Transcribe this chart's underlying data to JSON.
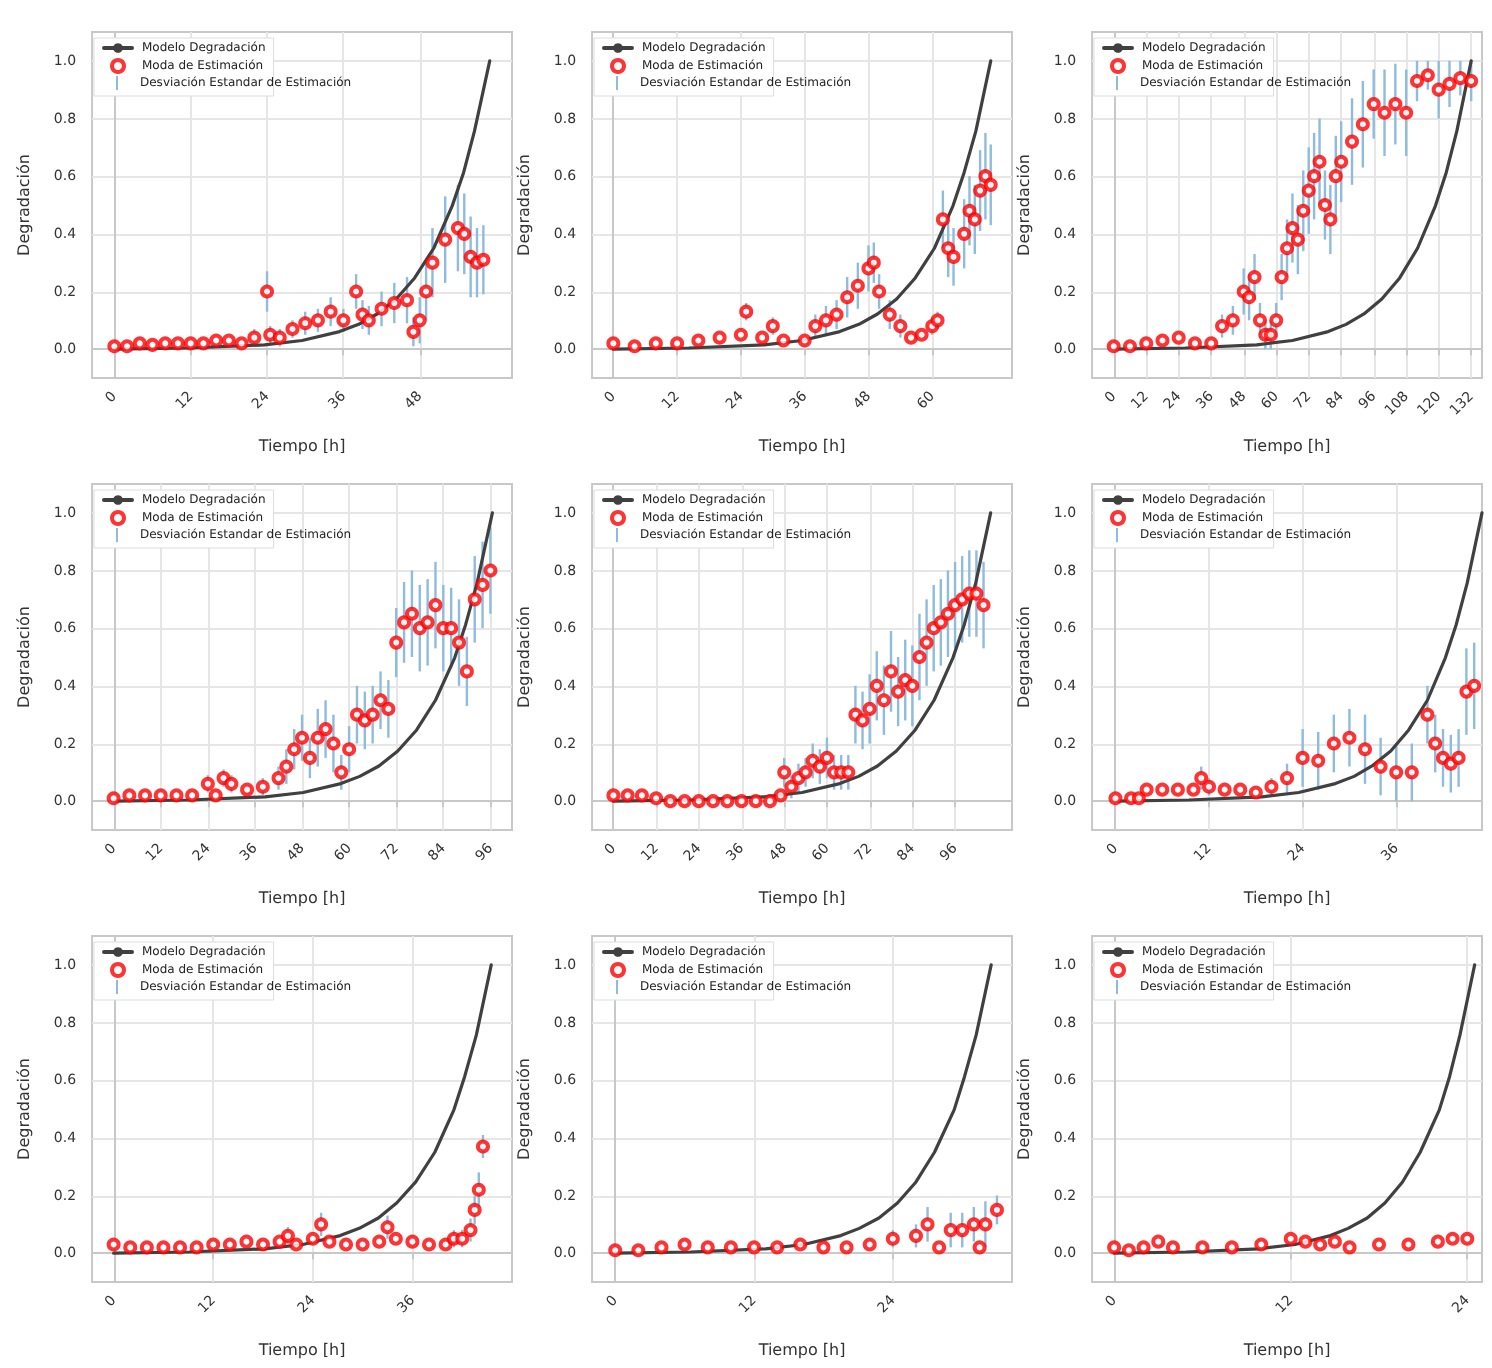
{
  "chart_data": [
    {
      "type": "line",
      "xlabel": "Tiempo [h]",
      "ylabel": "Degradación",
      "xlim": [
        -3.5,
        62.5
      ],
      "xticks": [
        0,
        12,
        24,
        36,
        48
      ],
      "ylim": [
        -0.1,
        1.1
      ],
      "yticks": [
        {
          "value": 0,
          "label": "0.0"
        },
        {
          "value": 0.2,
          "label": "0.2"
        },
        {
          "value": 0.4,
          "label": "0.4"
        },
        {
          "value": 0.6,
          "label": "0.6"
        },
        {
          "value": 0.8,
          "label": "0.8"
        },
        {
          "value": 1,
          "label": "1.0"
        }
      ],
      "grid": true,
      "legend": "top left",
      "annotations": [
        "Desviación Estandar de Estimación"
      ],
      "series": [
        {
          "name": "Modelo Degradación",
          "type": "line",
          "marker": "none",
          "color": "#404040",
          "x": [
            0,
            11.8,
            23.6,
            29.5,
            35.4,
            38.4,
            41.3,
            44.3,
            47.2,
            50.2,
            53.1,
            54.9,
            56.6,
            59
          ],
          "values": [
            0,
            0.004,
            0.015,
            0.03,
            0.061,
            0.086,
            0.122,
            0.174,
            0.247,
            0.35,
            0.497,
            0.613,
            0.756,
            1
          ]
        },
        {
          "name": "Moda de Estimación",
          "type": "scatter",
          "marker": "circle",
          "color": "#ff0000",
          "x": [
            0,
            2,
            4,
            6,
            8,
            10,
            12,
            14,
            16,
            18,
            20,
            22,
            24,
            24.5,
            26,
            28,
            30,
            32,
            34,
            36,
            38,
            39,
            40,
            42,
            44,
            46,
            47,
            48,
            49,
            50,
            52,
            54,
            55,
            56,
            57,
            58
          ],
          "values": [
            0.01,
            0.01,
            0.02,
            0.015,
            0.02,
            0.02,
            0.02,
            0.02,
            0.03,
            0.03,
            0.02,
            0.04,
            0.2,
            0.05,
            0.04,
            0.07,
            0.09,
            0.1,
            0.13,
            0.1,
            0.2,
            0.12,
            0.1,
            0.14,
            0.16,
            0.17,
            0.06,
            0.1,
            0.2,
            0.3,
            0.38,
            0.42,
            0.4,
            0.32,
            0.3,
            0.31
          ],
          "errors": [
            null,
            null,
            null,
            null,
            null,
            null,
            null,
            null,
            null,
            null,
            null,
            0.03,
            0.07,
            0.03,
            0.03,
            0.03,
            0.04,
            0.04,
            0.05,
            0.04,
            0.06,
            0.05,
            0.05,
            0.06,
            0.07,
            0.08,
            0.05,
            0.08,
            0.1,
            0.12,
            0.15,
            0.15,
            0.14,
            0.14,
            0.12,
            0.12
          ]
        }
      ]
    },
    {
      "type": "line",
      "xlabel": "Tiempo [h]",
      "ylabel": "Degradación",
      "xlim": [
        -4,
        75
      ],
      "xticks": [
        0,
        12,
        24,
        36,
        48,
        60
      ],
      "ylim": [
        -0.1,
        1.1
      ],
      "yticks": [
        {
          "value": 0,
          "label": "0.0"
        },
        {
          "value": 0.2,
          "label": "0.2"
        },
        {
          "value": 0.4,
          "label": "0.4"
        },
        {
          "value": 0.6,
          "label": "0.6"
        },
        {
          "value": 0.8,
          "label": "0.8"
        },
        {
          "value": 1,
          "label": "1.0"
        }
      ],
      "grid": true,
      "legend": "top left",
      "annotations": [
        "Desviación Estandar de Estimación"
      ],
      "series": [
        {
          "name": "Modelo Degradación",
          "type": "line",
          "marker": "none",
          "color": "#404040",
          "x": [
            0,
            14.2,
            28.4,
            35.5,
            42.6,
            46.2,
            49.7,
            53.3,
            56.8,
            60.4,
            63.9,
            66,
            68.2,
            71
          ],
          "values": [
            0,
            0.004,
            0.015,
            0.03,
            0.061,
            0.086,
            0.122,
            0.174,
            0.247,
            0.35,
            0.497,
            0.613,
            0.756,
            1
          ]
        },
        {
          "name": "Moda de Estimación",
          "type": "scatter",
          "marker": "circle",
          "color": "#ff0000",
          "x": [
            0,
            4,
            8,
            12,
            16,
            20,
            24,
            25,
            28,
            30,
            32,
            36,
            38,
            40,
            42,
            44,
            46,
            48,
            49,
            50,
            52,
            54,
            56,
            58,
            60,
            61,
            62,
            63,
            64,
            66,
            67,
            68,
            69,
            70,
            71
          ],
          "values": [
            0.02,
            0.01,
            0.02,
            0.02,
            0.03,
            0.04,
            0.05,
            0.13,
            0.04,
            0.08,
            0.03,
            0.03,
            0.08,
            0.1,
            0.12,
            0.18,
            0.22,
            0.28,
            0.3,
            0.2,
            0.12,
            0.08,
            0.04,
            0.05,
            0.08,
            0.1,
            0.45,
            0.35,
            0.32,
            0.4,
            0.48,
            0.45,
            0.55,
            0.6,
            0.57
          ],
          "errors": [
            null,
            null,
            null,
            null,
            null,
            null,
            null,
            0.03,
            null,
            0.03,
            null,
            null,
            0.04,
            0.05,
            0.05,
            0.07,
            0.08,
            0.08,
            0.07,
            0.06,
            0.05,
            0.04,
            null,
            null,
            0.03,
            0.03,
            0.1,
            0.1,
            0.1,
            0.12,
            0.12,
            0.12,
            0.14,
            0.15,
            0.14
          ]
        }
      ]
    },
    {
      "type": "line",
      "xlabel": "Tiempo [h]",
      "ylabel": "Degradación",
      "xlim": [
        -8,
        136
      ],
      "xticks": [
        0,
        12,
        24,
        36,
        48,
        60,
        72,
        84,
        96,
        108,
        120,
        132
      ],
      "ylim": [
        -0.1,
        1.1
      ],
      "yticks": [
        {
          "value": 0,
          "label": "0.0"
        },
        {
          "value": 0.2,
          "label": "0.2"
        },
        {
          "value": 0.4,
          "label": "0.4"
        },
        {
          "value": 0.6,
          "label": "0.6"
        },
        {
          "value": 0.8,
          "label": "0.8"
        },
        {
          "value": 1,
          "label": "1.0"
        }
      ],
      "grid": true,
      "legend": "top left",
      "annotations": [
        "Desviación Estandar de Estimación"
      ],
      "series": [
        {
          "name": "Modelo Degradación",
          "type": "line",
          "marker": "none",
          "color": "#404040",
          "x": [
            0,
            26.4,
            52.8,
            66,
            79.2,
            85.8,
            92.4,
            99,
            105.6,
            112.2,
            118.8,
            122.8,
            126.7,
            132
          ],
          "values": [
            0,
            0.004,
            0.015,
            0.03,
            0.061,
            0.086,
            0.122,
            0.174,
            0.247,
            0.35,
            0.497,
            0.613,
            0.756,
            1
          ]
        },
        {
          "name": "Moda de Estimación",
          "type": "scatter",
          "marker": "circle",
          "color": "#ff0000",
          "x": [
            0,
            6,
            12,
            18,
            24,
            30,
            36,
            40,
            44,
            48,
            50,
            52,
            54,
            56,
            58,
            60,
            62,
            64,
            66,
            68,
            70,
            72,
            74,
            76,
            78,
            80,
            82,
            84,
            88,
            92,
            96,
            100,
            104,
            108,
            112,
            116,
            120,
            124,
            128,
            132
          ],
          "values": [
            0.01,
            0.01,
            0.02,
            0.03,
            0.04,
            0.02,
            0.02,
            0.08,
            0.1,
            0.2,
            0.18,
            0.25,
            0.1,
            0.05,
            0.05,
            0.1,
            0.25,
            0.35,
            0.42,
            0.38,
            0.48,
            0.55,
            0.6,
            0.65,
            0.5,
            0.45,
            0.6,
            0.65,
            0.72,
            0.78,
            0.85,
            0.82,
            0.85,
            0.82,
            0.93,
            0.95,
            0.9,
            0.92,
            0.94,
            0.93
          ],
          "errors": [
            null,
            null,
            null,
            null,
            null,
            null,
            null,
            0.04,
            0.05,
            0.08,
            0.08,
            0.08,
            0.06,
            0.05,
            0.05,
            0.06,
            0.08,
            0.1,
            0.12,
            0.12,
            0.14,
            0.15,
            0.15,
            0.15,
            0.12,
            0.12,
            0.14,
            0.14,
            0.15,
            0.15,
            0.12,
            0.15,
            0.14,
            0.15,
            0.07,
            0.05,
            0.1,
            0.08,
            0.06,
            0.07
          ]
        }
      ]
    },
    {
      "type": "line",
      "xlabel": "Tiempo [h]",
      "ylabel": "Degradación",
      "xlim": [
        -5.5,
        101.5
      ],
      "xticks": [
        0,
        12,
        24,
        36,
        48,
        60,
        72,
        84,
        96
      ],
      "ylim": [
        -0.1,
        1.1
      ],
      "yticks": [
        {
          "value": 0,
          "label": "0.0"
        },
        {
          "value": 0.2,
          "label": "0.2"
        },
        {
          "value": 0.4,
          "label": "0.4"
        },
        {
          "value": 0.6,
          "label": "0.6"
        },
        {
          "value": 0.8,
          "label": "0.8"
        },
        {
          "value": 1,
          "label": "1.0"
        }
      ],
      "grid": true,
      "legend": "top left",
      "annotations": [
        "Desviación Estandar de Estimación"
      ],
      "series": [
        {
          "name": "Modelo Degradación",
          "type": "line",
          "marker": "none",
          "color": "#404040",
          "x": [
            0,
            19.3,
            38.6,
            48.3,
            57.9,
            62.7,
            67.6,
            72.4,
            77.2,
            82,
            86.9,
            89.7,
            92.6,
            96.5
          ],
          "values": [
            0,
            0.004,
            0.015,
            0.03,
            0.061,
            0.086,
            0.122,
            0.174,
            0.247,
            0.35,
            0.497,
            0.613,
            0.756,
            1
          ]
        },
        {
          "name": "Moda de Estimación",
          "type": "scatter",
          "marker": "circle",
          "color": "#ff0000",
          "x": [
            0,
            4,
            8,
            12,
            16,
            20,
            24,
            26,
            28,
            30,
            34,
            38,
            42,
            44,
            46,
            48,
            50,
            52,
            54,
            56,
            58,
            60,
            62,
            64,
            66,
            68,
            70,
            72,
            74,
            76,
            78,
            80,
            82,
            84,
            86,
            88,
            90,
            92,
            94,
            96
          ],
          "values": [
            0.01,
            0.02,
            0.02,
            0.02,
            0.02,
            0.02,
            0.06,
            0.02,
            0.08,
            0.06,
            0.04,
            0.05,
            0.08,
            0.12,
            0.18,
            0.22,
            0.15,
            0.22,
            0.25,
            0.2,
            0.1,
            0.18,
            0.3,
            0.28,
            0.3,
            0.35,
            0.32,
            0.55,
            0.62,
            0.65,
            0.6,
            0.62,
            0.68,
            0.6,
            0.6,
            0.55,
            0.45,
            0.7,
            0.75,
            0.8
          ],
          "errors": [
            null,
            null,
            null,
            null,
            null,
            null,
            0.03,
            null,
            0.03,
            0.03,
            null,
            0.03,
            0.04,
            0.06,
            0.07,
            0.08,
            0.07,
            0.1,
            0.1,
            0.1,
            0.06,
            0.08,
            0.1,
            0.1,
            0.1,
            0.1,
            0.1,
            0.12,
            0.14,
            0.15,
            0.15,
            0.15,
            0.15,
            0.15,
            0.14,
            0.15,
            0.12,
            0.15,
            0.15,
            0.15
          ]
        }
      ]
    },
    {
      "type": "line",
      "xlabel": "Tiempo [h]",
      "ylabel": "Degradación",
      "xlim": [
        -6,
        112
      ],
      "xticks": [
        0,
        12,
        24,
        36,
        48,
        60,
        72,
        84,
        96
      ],
      "ylim": [
        -0.1,
        1.1
      ],
      "yticks": [
        {
          "value": 0,
          "label": "0.0"
        },
        {
          "value": 0.2,
          "label": "0.2"
        },
        {
          "value": 0.4,
          "label": "0.4"
        },
        {
          "value": 0.6,
          "label": "0.6"
        },
        {
          "value": 0.8,
          "label": "0.8"
        },
        {
          "value": 1,
          "label": "1.0"
        }
      ],
      "grid": true,
      "legend": "top left",
      "annotations": [
        "Desviación Estandar de Estimación"
      ],
      "series": [
        {
          "name": "Modelo Degradación",
          "type": "line",
          "marker": "none",
          "color": "#404040",
          "x": [
            0,
            21.2,
            42.4,
            53,
            63.6,
            68.9,
            74.2,
            79.5,
            84.8,
            90.1,
            95.4,
            98.6,
            101.8,
            106
          ],
          "values": [
            0,
            0.004,
            0.015,
            0.03,
            0.061,
            0.086,
            0.122,
            0.174,
            0.247,
            0.35,
            0.497,
            0.613,
            0.756,
            1
          ]
        },
        {
          "name": "Moda de Estimación",
          "type": "scatter",
          "marker": "circle",
          "color": "#ff0000",
          "x": [
            0,
            4,
            8,
            12,
            16,
            20,
            24,
            28,
            32,
            36,
            40,
            44,
            47,
            48,
            50,
            52,
            54,
            56,
            58,
            60,
            62,
            64,
            66,
            68,
            70,
            72,
            74,
            76,
            78,
            80,
            82,
            84,
            86,
            88,
            90,
            92,
            94,
            96,
            98,
            100,
            102,
            104
          ],
          "values": [
            0.02,
            0.02,
            0.02,
            0.01,
            0,
            0,
            0,
            0,
            0,
            0,
            0,
            0,
            0.02,
            0.1,
            0.05,
            0.08,
            0.1,
            0.14,
            0.12,
            0.15,
            0.1,
            0.1,
            0.1,
            0.3,
            0.28,
            0.32,
            0.4,
            0.35,
            0.45,
            0.38,
            0.42,
            0.4,
            0.5,
            0.55,
            0.6,
            0.62,
            0.65,
            0.68,
            0.7,
            0.72,
            0.72,
            0.68
          ],
          "errors": [
            null,
            null,
            null,
            null,
            null,
            null,
            null,
            null,
            null,
            null,
            null,
            null,
            null,
            0.05,
            0.04,
            0.05,
            0.05,
            0.06,
            0.06,
            0.07,
            0.06,
            0.06,
            0.06,
            0.1,
            0.1,
            0.12,
            0.12,
            0.12,
            0.14,
            0.12,
            0.14,
            0.14,
            0.15,
            0.15,
            0.15,
            0.15,
            0.15,
            0.15,
            0.15,
            0.15,
            0.15,
            0.15
          ]
        }
      ]
    },
    {
      "type": "line",
      "xlabel": "Tiempo [h]",
      "ylabel": "Degradación",
      "xlim": [
        -3,
        47
      ],
      "xticks": [
        0,
        12,
        24,
        36
      ],
      "ylim": [
        -0.1,
        1.1
      ],
      "yticks": [
        {
          "value": 0,
          "label": "0.0"
        },
        {
          "value": 0.2,
          "label": "0.2"
        },
        {
          "value": 0.4,
          "label": "0.4"
        },
        {
          "value": 0.6,
          "label": "0.6"
        },
        {
          "value": 0.8,
          "label": "0.8"
        },
        {
          "value": 1,
          "label": "1.0"
        }
      ],
      "grid": true,
      "legend": "top left",
      "annotations": [
        "Desviación Estandar de Estimación"
      ],
      "series": [
        {
          "name": "Modelo Degradación",
          "type": "line",
          "marker": "none",
          "color": "#404040",
          "x": [
            0,
            9.4,
            18.8,
            23.5,
            28.2,
            30.6,
            32.9,
            35.3,
            37.6,
            40,
            42.3,
            43.7,
            45.1,
            47
          ],
          "values": [
            0,
            0.004,
            0.015,
            0.03,
            0.061,
            0.086,
            0.122,
            0.174,
            0.247,
            0.35,
            0.497,
            0.613,
            0.756,
            1
          ]
        },
        {
          "name": "Moda de Estimación",
          "type": "scatter",
          "marker": "circle",
          "color": "#ff0000",
          "x": [
            0,
            2,
            3,
            4,
            6,
            8,
            10,
            11,
            12,
            14,
            16,
            18,
            20,
            22,
            24,
            26,
            28,
            30,
            32,
            34,
            36,
            38,
            40,
            41,
            42,
            43,
            44,
            45,
            46
          ],
          "values": [
            0.01,
            0.01,
            0.01,
            0.04,
            0.04,
            0.04,
            0.04,
            0.08,
            0.05,
            0.04,
            0.04,
            0.03,
            0.05,
            0.08,
            0.15,
            0.14,
            0.2,
            0.22,
            0.18,
            0.12,
            0.1,
            0.1,
            0.3,
            0.2,
            0.15,
            0.13,
            0.15,
            0.38,
            0.4
          ],
          "errors": [
            null,
            null,
            null,
            null,
            null,
            null,
            null,
            0.04,
            0.03,
            null,
            null,
            null,
            0.03,
            0.05,
            0.1,
            0.1,
            0.1,
            0.1,
            0.12,
            0.1,
            0.1,
            0.1,
            0.1,
            0.1,
            0.1,
            0.1,
            0.1,
            0.15,
            0.15
          ]
        }
      ]
    },
    {
      "type": "line",
      "xlabel": "Tiempo [h]",
      "ylabel": "Degradación",
      "xlim": [
        -2.6,
        48
      ],
      "xticks": [
        0,
        12,
        24,
        36
      ],
      "ylim": [
        -0.1,
        1.1
      ],
      "yticks": [
        {
          "value": 0,
          "label": "0.0"
        },
        {
          "value": 0.2,
          "label": "0.2"
        },
        {
          "value": 0.4,
          "label": "0.4"
        },
        {
          "value": 0.6,
          "label": "0.6"
        },
        {
          "value": 0.8,
          "label": "0.8"
        },
        {
          "value": 1,
          "label": "1.0"
        }
      ],
      "grid": true,
      "legend": "top left",
      "annotations": [
        "Desviación Estandar de Estimación"
      ],
      "series": [
        {
          "name": "Modelo Degradación",
          "type": "line",
          "marker": "none",
          "color": "#404040",
          "x": [
            0,
            9.1,
            18.2,
            22.8,
            27.3,
            29.6,
            31.9,
            34.1,
            36.4,
            38.7,
            41,
            42.3,
            43.7,
            45.5
          ],
          "values": [
            0,
            0.004,
            0.015,
            0.03,
            0.061,
            0.086,
            0.122,
            0.174,
            0.247,
            0.35,
            0.497,
            0.613,
            0.756,
            1
          ]
        },
        {
          "name": "Moda de Estimación",
          "type": "scatter",
          "marker": "circle",
          "color": "#ff0000",
          "x": [
            0,
            2,
            4,
            6,
            8,
            10,
            12,
            14,
            16,
            18,
            20,
            21,
            22,
            24,
            25,
            26,
            28,
            30,
            32,
            33,
            34,
            36,
            38,
            40,
            41,
            42,
            43,
            43.5,
            44,
            44.5
          ],
          "values": [
            0.03,
            0.02,
            0.02,
            0.02,
            0.02,
            0.02,
            0.03,
            0.03,
            0.04,
            0.03,
            0.04,
            0.06,
            0.03,
            0.05,
            0.1,
            0.04,
            0.03,
            0.03,
            0.04,
            0.09,
            0.05,
            0.04,
            0.03,
            0.03,
            0.05,
            0.05,
            0.08,
            0.15,
            0.22,
            0.37
          ],
          "errors": [
            null,
            null,
            null,
            null,
            null,
            null,
            null,
            null,
            null,
            null,
            null,
            0.03,
            null,
            null,
            0.04,
            null,
            null,
            null,
            null,
            0.04,
            null,
            null,
            null,
            null,
            0.03,
            0.03,
            0.04,
            0.05,
            0.06,
            0.04
          ]
        }
      ]
    },
    {
      "type": "line",
      "xlabel": "Tiempo [h]",
      "ylabel": "Degradación",
      "xlim": [
        -2,
        34.3
      ],
      "xticks": [
        0,
        12,
        24
      ],
      "ylim": [
        -0.1,
        1.1
      ],
      "yticks": [
        {
          "value": 0,
          "label": "0.0"
        },
        {
          "value": 0.2,
          "label": "0.2"
        },
        {
          "value": 0.4,
          "label": "0.4"
        },
        {
          "value": 0.6,
          "label": "0.6"
        },
        {
          "value": 0.8,
          "label": "0.8"
        },
        {
          "value": 1,
          "label": "1.0"
        }
      ],
      "grid": true,
      "legend": "top left",
      "annotations": [
        "Desviación Estandar de Estimación"
      ],
      "series": [
        {
          "name": "Modelo Degradación",
          "type": "line",
          "marker": "none",
          "color": "#404040",
          "x": [
            0,
            6.5,
            13,
            16.3,
            19.5,
            21.1,
            22.8,
            24.4,
            26,
            27.6,
            29.3,
            30.2,
            31.2,
            32.5
          ],
          "values": [
            0,
            0.004,
            0.015,
            0.03,
            0.061,
            0.086,
            0.122,
            0.174,
            0.247,
            0.35,
            0.497,
            0.613,
            0.756,
            1
          ]
        },
        {
          "name": "Moda de Estimación",
          "type": "scatter",
          "marker": "circle",
          "color": "#ff0000",
          "x": [
            0,
            2,
            4,
            6,
            8,
            10,
            12,
            14,
            16,
            18,
            20,
            22,
            24,
            26,
            27,
            28,
            29,
            30,
            31,
            31.5,
            32,
            33
          ],
          "values": [
            0.01,
            0.01,
            0.02,
            0.03,
            0.02,
            0.02,
            0.02,
            0.02,
            0.03,
            0.02,
            0.02,
            0.03,
            0.05,
            0.06,
            0.1,
            0.02,
            0.08,
            0.08,
            0.1,
            0.02,
            0.1,
            0.15
          ],
          "errors": [
            null,
            null,
            null,
            null,
            null,
            null,
            null,
            null,
            null,
            null,
            null,
            null,
            0.03,
            0.04,
            0.06,
            null,
            0.06,
            0.06,
            0.06,
            null,
            0.08,
            0.05
          ]
        }
      ]
    },
    {
      "type": "line",
      "xlabel": "Tiempo [h]",
      "ylabel": "Degradación",
      "xlim": [
        -1.5,
        25
      ],
      "xticks": [
        0,
        12,
        24
      ],
      "ylim": [
        -0.1,
        1.1
      ],
      "yticks": [
        {
          "value": 0,
          "label": "0.0"
        },
        {
          "value": 0.2,
          "label": "0.2"
        },
        {
          "value": 0.4,
          "label": "0.4"
        },
        {
          "value": 0.6,
          "label": "0.6"
        },
        {
          "value": 0.8,
          "label": "0.8"
        },
        {
          "value": 1,
          "label": "1.0"
        }
      ],
      "grid": true,
      "legend": "top left",
      "annotations": [
        "Desviación Estandar de Estimación"
      ],
      "series": [
        {
          "name": "Modelo Degradación",
          "type": "line",
          "marker": "none",
          "color": "#404040",
          "x": [
            0,
            4.9,
            9.8,
            12.3,
            14.7,
            15.9,
            17.2,
            18.4,
            19.6,
            20.8,
            22.1,
            22.8,
            23.5,
            24.5
          ],
          "values": [
            0,
            0.004,
            0.015,
            0.03,
            0.061,
            0.086,
            0.122,
            0.174,
            0.247,
            0.35,
            0.497,
            0.613,
            0.756,
            1
          ]
        },
        {
          "name": "Moda de Estimación",
          "type": "scatter",
          "marker": "circle",
          "color": "#ff0000",
          "x": [
            0,
            1,
            2,
            3,
            4,
            6,
            8,
            10,
            12,
            13,
            14,
            15,
            16,
            18,
            20,
            22,
            23,
            24
          ],
          "values": [
            0.02,
            0.01,
            0.02,
            0.04,
            0.02,
            0.02,
            0.02,
            0.03,
            0.05,
            0.04,
            0.03,
            0.04,
            0.02,
            0.03,
            0.03,
            0.04,
            0.05,
            0.05
          ],
          "errors": [
            null,
            null,
            null,
            null,
            null,
            null,
            null,
            null,
            null,
            null,
            null,
            null,
            null,
            null,
            null,
            null,
            null,
            null
          ]
        }
      ]
    }
  ]
}
